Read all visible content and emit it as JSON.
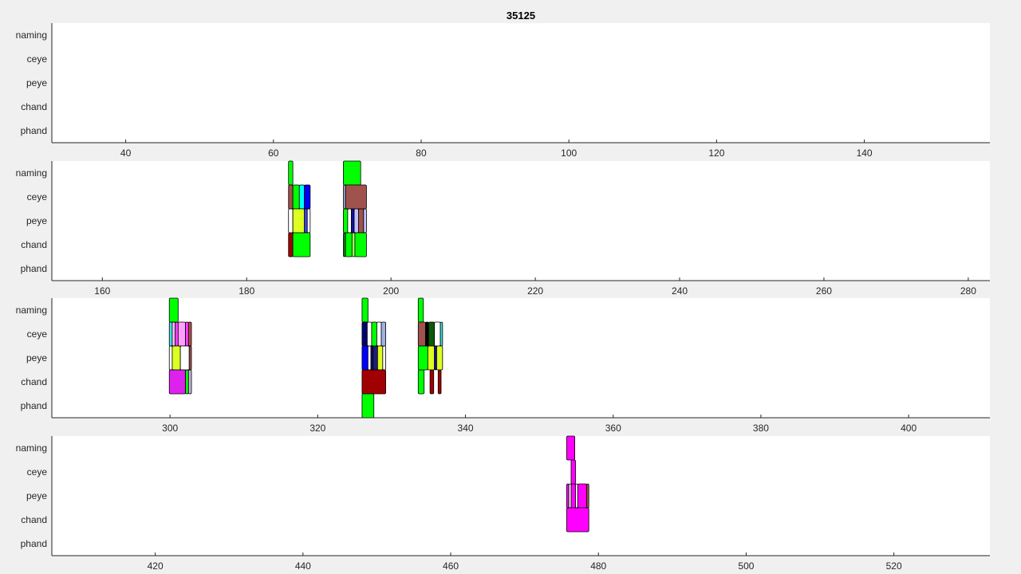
{
  "chart_data": {
    "type": "timeline",
    "title": "35125",
    "rows": [
      "naming",
      "ceye",
      "peye",
      "chand",
      "phand"
    ],
    "panels": [
      {
        "xlim": [
          30,
          157
        ],
        "ticks": [
          40,
          60,
          80,
          100,
          120,
          140
        ],
        "segments": []
      },
      {
        "xlim": [
          153,
          283
        ],
        "ticks": [
          160,
          180,
          200,
          220,
          240,
          260,
          280
        ],
        "segments": [
          {
            "row": "naming",
            "start": 185.8,
            "end": 186.4,
            "color": "#00ff00"
          },
          {
            "row": "naming",
            "start": 193.4,
            "end": 195.8,
            "color": "#00ff00"
          },
          {
            "row": "ceye",
            "start": 185.8,
            "end": 186.4,
            "color": "#a0524d"
          },
          {
            "row": "ceye",
            "start": 186.4,
            "end": 187.3,
            "color": "#00ff00"
          },
          {
            "row": "ceye",
            "start": 187.3,
            "end": 188.0,
            "color": "#00ffff"
          },
          {
            "row": "ceye",
            "start": 188.0,
            "end": 188.8,
            "color": "#0000ff"
          },
          {
            "row": "ceye",
            "start": 193.4,
            "end": 193.7,
            "color": "#a0b0e0"
          },
          {
            "row": "ceye",
            "start": 193.7,
            "end": 196.6,
            "color": "#a0524d"
          },
          {
            "row": "peye",
            "start": 185.8,
            "end": 186.4,
            "color": "#ffffff"
          },
          {
            "row": "peye",
            "start": 186.4,
            "end": 188.0,
            "color": "#ddff22"
          },
          {
            "row": "peye",
            "start": 188.0,
            "end": 188.4,
            "color": "#4040ff"
          },
          {
            "row": "peye",
            "start": 188.4,
            "end": 188.8,
            "color": "#ffffff"
          },
          {
            "row": "peye",
            "start": 193.4,
            "end": 194.0,
            "color": "#00ff00"
          },
          {
            "row": "peye",
            "start": 194.0,
            "end": 194.5,
            "color": "#ffffff"
          },
          {
            "row": "peye",
            "start": 194.5,
            "end": 194.9,
            "color": "#1010a0"
          },
          {
            "row": "peye",
            "start": 194.9,
            "end": 195.5,
            "color": "#c0c0ff"
          },
          {
            "row": "peye",
            "start": 195.5,
            "end": 196.2,
            "color": "#a0524d"
          },
          {
            "row": "peye",
            "start": 196.2,
            "end": 196.6,
            "color": "#c0c0ff"
          },
          {
            "row": "chand",
            "start": 185.8,
            "end": 186.4,
            "color": "#a00000"
          },
          {
            "row": "chand",
            "start": 186.4,
            "end": 188.8,
            "color": "#00ff00"
          },
          {
            "row": "chand",
            "start": 193.4,
            "end": 193.7,
            "color": "#0a8a0a"
          },
          {
            "row": "chand",
            "start": 193.7,
            "end": 194.6,
            "color": "#00ff00"
          },
          {
            "row": "chand",
            "start": 194.6,
            "end": 195.0,
            "color": "#a0ff60"
          },
          {
            "row": "chand",
            "start": 195.0,
            "end": 196.6,
            "color": "#00ff00"
          }
        ]
      },
      {
        "xlim": [
          284,
          411
        ],
        "ticks": [
          300,
          320,
          340,
          360,
          380,
          400
        ],
        "segments": [
          {
            "row": "naming",
            "start": 299.9,
            "end": 301.1,
            "color": "#00ff00"
          },
          {
            "row": "naming",
            "start": 326.0,
            "end": 326.8,
            "color": "#00ff00"
          },
          {
            "row": "naming",
            "start": 333.6,
            "end": 334.3,
            "color": "#00ff00"
          },
          {
            "row": "ceye",
            "start": 299.9,
            "end": 300.3,
            "color": "#40e0e0"
          },
          {
            "row": "ceye",
            "start": 300.3,
            "end": 300.7,
            "color": "#ffc0ff"
          },
          {
            "row": "ceye",
            "start": 300.7,
            "end": 301.1,
            "color": "#ff40ff"
          },
          {
            "row": "ceye",
            "start": 301.1,
            "end": 302.1,
            "color": "#ffa0ff"
          },
          {
            "row": "ceye",
            "start": 302.1,
            "end": 302.5,
            "color": "#ff40ff"
          },
          {
            "row": "ceye",
            "start": 302.5,
            "end": 302.9,
            "color": "#b05050"
          },
          {
            "row": "ceye",
            "start": 326.0,
            "end": 326.7,
            "color": "#000070"
          },
          {
            "row": "ceye",
            "start": 326.7,
            "end": 327.3,
            "color": "#ffffff"
          },
          {
            "row": "ceye",
            "start": 327.3,
            "end": 328.0,
            "color": "#00ff00"
          },
          {
            "row": "ceye",
            "start": 328.0,
            "end": 328.6,
            "color": "#ffffff"
          },
          {
            "row": "ceye",
            "start": 328.6,
            "end": 329.2,
            "color": "#a0b0e0"
          },
          {
            "row": "ceye",
            "start": 333.6,
            "end": 334.6,
            "color": "#a0524d"
          },
          {
            "row": "ceye",
            "start": 334.6,
            "end": 335.0,
            "color": "#000000"
          },
          {
            "row": "ceye",
            "start": 335.0,
            "end": 335.8,
            "color": "#0a5a0a"
          },
          {
            "row": "ceye",
            "start": 335.8,
            "end": 336.6,
            "color": "#ffffff"
          },
          {
            "row": "ceye",
            "start": 336.6,
            "end": 336.9,
            "color": "#40e0e0"
          },
          {
            "row": "peye",
            "start": 299.9,
            "end": 300.3,
            "color": "#ffffff"
          },
          {
            "row": "peye",
            "start": 300.3,
            "end": 301.4,
            "color": "#ddff22"
          },
          {
            "row": "peye",
            "start": 301.4,
            "end": 302.6,
            "color": "#ffffff"
          },
          {
            "row": "peye",
            "start": 302.6,
            "end": 302.9,
            "color": "#a0524d"
          },
          {
            "row": "peye",
            "start": 326.0,
            "end": 326.8,
            "color": "#0000ff"
          },
          {
            "row": "peye",
            "start": 326.8,
            "end": 327.2,
            "color": "#ffffff"
          },
          {
            "row": "peye",
            "start": 327.2,
            "end": 327.5,
            "color": "#0a0a7a"
          },
          {
            "row": "peye",
            "start": 327.5,
            "end": 328.1,
            "color": "#202070"
          },
          {
            "row": "peye",
            "start": 328.1,
            "end": 328.8,
            "color": "#ddff22"
          },
          {
            "row": "peye",
            "start": 328.8,
            "end": 329.2,
            "color": "#ffffff"
          },
          {
            "row": "peye",
            "start": 333.6,
            "end": 334.9,
            "color": "#00ff00"
          },
          {
            "row": "peye",
            "start": 334.9,
            "end": 335.8,
            "color": "#ddff22"
          },
          {
            "row": "peye",
            "start": 335.8,
            "end": 336.1,
            "color": "#1010a0"
          },
          {
            "row": "peye",
            "start": 336.1,
            "end": 336.9,
            "color": "#ddff22"
          },
          {
            "row": "chand",
            "start": 299.9,
            "end": 302.1,
            "color": "#dd22ee"
          },
          {
            "row": "chand",
            "start": 302.1,
            "end": 302.5,
            "color": "#00ff00"
          },
          {
            "row": "chand",
            "start": 302.5,
            "end": 302.9,
            "color": "#c8b4e0"
          },
          {
            "row": "chand",
            "start": 326.0,
            "end": 329.2,
            "color": "#a00000"
          },
          {
            "row": "chand",
            "start": 333.6,
            "end": 334.4,
            "color": "#00ff00"
          },
          {
            "row": "chand",
            "start": 335.2,
            "end": 335.7,
            "color": "#a00000"
          },
          {
            "row": "chand",
            "start": 336.3,
            "end": 336.7,
            "color": "#a00000"
          },
          {
            "row": "phand",
            "start": 326.0,
            "end": 327.6,
            "color": "#00ff00"
          }
        ]
      },
      {
        "xlim": [
          406,
          533
        ],
        "ticks": [
          420,
          440,
          460,
          480,
          500,
          520
        ],
        "segments": [
          {
            "row": "naming",
            "start": 475.7,
            "end": 476.8,
            "color": "#ff00ff"
          },
          {
            "row": "ceye",
            "start": 476.3,
            "end": 476.9,
            "color": "#ff00ff"
          },
          {
            "row": "peye",
            "start": 475.7,
            "end": 476.0,
            "color": "#ff00ff"
          },
          {
            "row": "peye",
            "start": 476.0,
            "end": 476.3,
            "color": "#ffffff"
          },
          {
            "row": "peye",
            "start": 476.3,
            "end": 476.9,
            "color": "#ff00ff"
          },
          {
            "row": "peye",
            "start": 476.9,
            "end": 477.2,
            "color": "#ffffff"
          },
          {
            "row": "peye",
            "start": 477.2,
            "end": 478.4,
            "color": "#ff00ff"
          },
          {
            "row": "peye",
            "start": 478.4,
            "end": 478.7,
            "color": "#a0524d"
          },
          {
            "row": "chand",
            "start": 475.7,
            "end": 478.7,
            "color": "#ff00ff"
          }
        ]
      }
    ]
  }
}
